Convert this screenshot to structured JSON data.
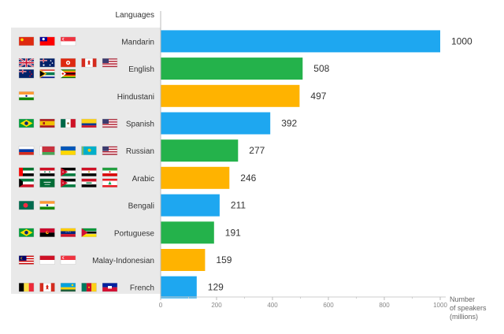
{
  "chart_data": {
    "type": "bar",
    "orientation": "horizontal",
    "column_header": "Languages",
    "xlabel": [
      "Number",
      "of speakers",
      "(millions)"
    ],
    "xlim": [
      0,
      1000
    ],
    "xticks": [
      "0",
      "200",
      "400",
      "600",
      "800",
      "1000"
    ],
    "grid": false,
    "categories": [
      "Mandarin",
      "English",
      "Hindustani",
      "Spanish",
      "Russian",
      "Arabic",
      "Bengali",
      "Portuguese",
      "Malay-Indonesian",
      "French"
    ],
    "values": [
      1000,
      508,
      497,
      392,
      277,
      246,
      211,
      191,
      159,
      129
    ],
    "value_labels": [
      "1000",
      "508",
      "497",
      "392",
      "277",
      "246",
      "211",
      "191",
      "159",
      "129"
    ],
    "bar_colors": [
      "#1ea7f0",
      "#24b24b",
      "#ffb300",
      "#1ea7f0",
      "#24b24b",
      "#ffb300",
      "#1ea7f0",
      "#24b24b",
      "#ffb300",
      "#1ea7f0"
    ],
    "flags": [
      [
        "flag-china-icon",
        "flag-taiwan-icon",
        "flag-singapore-icon"
      ],
      [
        "flag-uk-icon",
        "flag-australia-icon",
        "flag-hong-kong-icon",
        "flag-canada-icon",
        "flag-usa-icon",
        "flag-new-zealand-icon",
        "flag-south-africa-icon",
        "flag-zimbabwe-icon"
      ],
      [
        "flag-india-icon"
      ],
      [
        "flag-brazil-icon",
        "flag-spain-icon",
        "flag-mexico-icon",
        "flag-colombia-icon",
        "flag-usa-icon"
      ],
      [
        "flag-russia-icon",
        "flag-belarus-icon",
        "flag-ukraine-icon",
        "flag-kazakhstan-icon",
        "flag-usa-icon"
      ],
      [
        "flag-uae-icon",
        "flag-syria-icon",
        "flag-jordan-icon",
        "flag-egypt-icon",
        "flag-iran-icon",
        "flag-kuwait-icon",
        "flag-saudi-arabia-icon",
        "flag-jordan-icon",
        "flag-iraq-icon",
        "flag-lebanon-icon"
      ],
      [
        "flag-bangladesh-icon",
        "flag-india-icon"
      ],
      [
        "flag-brazil-icon",
        "flag-angola-icon",
        "flag-venezuela-icon",
        "flag-mozambique-icon"
      ],
      [
        "flag-malaysia-icon",
        "flag-indonesia-icon",
        "flag-singapore-icon"
      ],
      [
        "flag-belgium-icon",
        "flag-canada-icon",
        "flag-rwanda-icon",
        "flag-cameroon-icon",
        "flag-haiti-icon"
      ]
    ]
  }
}
